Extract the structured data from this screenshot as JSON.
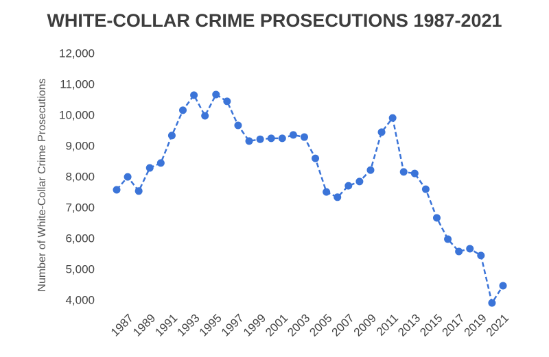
{
  "chart_data": {
    "type": "line",
    "title": "WHITE-COLLAR CRIME PROSECUTIONS 1987-2021",
    "y_label": "Number of White-Collar Crime Prosecutions",
    "x": [
      1986,
      1987,
      1988,
      1989,
      1990,
      1991,
      1992,
      1993,
      1994,
      1995,
      1996,
      1997,
      1998,
      1999,
      2000,
      2001,
      2002,
      2003,
      2004,
      2005,
      2006,
      2007,
      2008,
      2009,
      2010,
      2011,
      2012,
      2013,
      2014,
      2015,
      2016,
      2017,
      2018,
      2019,
      2020,
      2021
    ],
    "series": [
      {
        "color": "#3b74d8",
        "values": [
          7600,
          8020,
          7560,
          8310,
          8470,
          9360,
          10180,
          10670,
          10000,
          10690,
          10470,
          9690,
          9180,
          9240,
          9270,
          9270,
          9380,
          9310,
          8620,
          7530,
          7360,
          7730,
          7870,
          8240,
          9470,
          9930,
          8180,
          8130,
          7620,
          6690,
          6000,
          5600,
          5690,
          5470,
          3930,
          4490
        ]
      }
    ],
    "xlim": [
      1986,
      2021
    ],
    "xticks": [
      1987,
      1989,
      1991,
      1993,
      1995,
      1997,
      1999,
      2001,
      2003,
      2005,
      2007,
      2009,
      2011,
      2013,
      2015,
      2017,
      2019,
      2021
    ],
    "ylim": [
      4000,
      12000
    ],
    "yticks": [
      {
        "value": 4000,
        "label": "4,000"
      },
      {
        "value": 5000,
        "label": "5,000"
      },
      {
        "value": 6000,
        "label": "6,000"
      },
      {
        "value": 7000,
        "label": "7,000"
      },
      {
        "value": 8000,
        "label": "8,000"
      },
      {
        "value": 9000,
        "label": "9,000"
      },
      {
        "value": 10000,
        "label": "10,000"
      },
      {
        "value": 11000,
        "label": "11,000"
      },
      {
        "value": 12000,
        "label": "12,000"
      }
    ],
    "grid": false
  }
}
